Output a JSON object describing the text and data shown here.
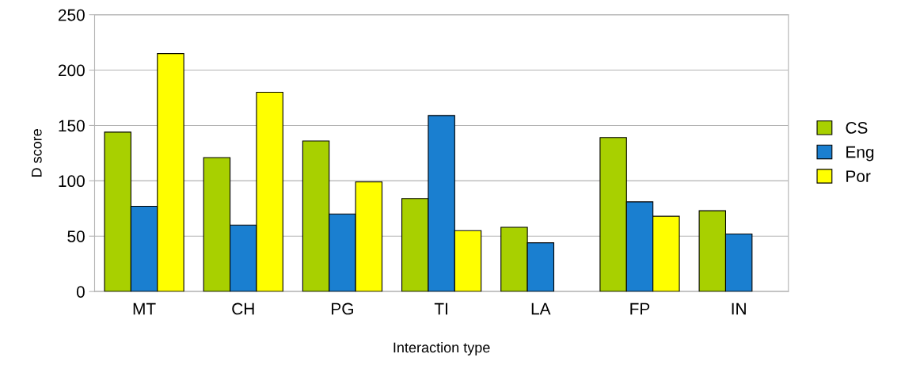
{
  "chart_data": {
    "type": "bar",
    "xlabel": "Interaction type",
    "ylabel": "D score",
    "categories": [
      "MT",
      "CH",
      "PG",
      "TI",
      "LA",
      "FP",
      "IN"
    ],
    "series": [
      {
        "name": "CS",
        "color": "#a8d000",
        "values": [
          144,
          121,
          136,
          84,
          58,
          139,
          73
        ]
      },
      {
        "name": "Eng",
        "color": "#1a7fd0",
        "values": [
          77,
          60,
          70,
          159,
          44,
          81,
          52
        ]
      },
      {
        "name": "Por",
        "color": "#ffff00",
        "values": [
          215,
          180,
          99,
          55,
          null,
          68,
          null
        ]
      }
    ],
    "ylim": [
      0,
      250
    ],
    "yticks": [
      0,
      50,
      100,
      150,
      200,
      250
    ],
    "grid": "y",
    "legend": "right"
  }
}
